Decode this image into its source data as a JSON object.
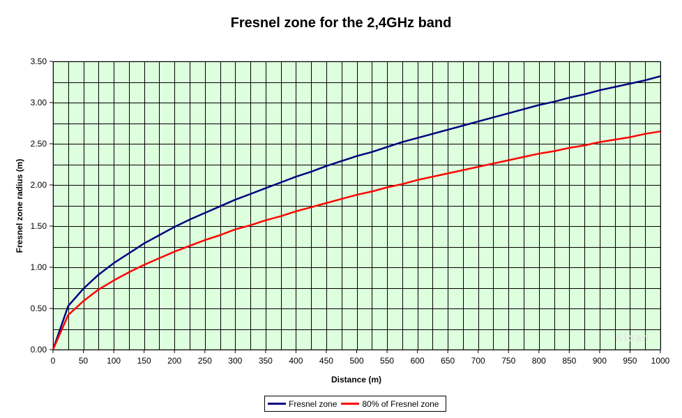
{
  "chart_data": {
    "type": "line",
    "title": "Fresnel zone for the 2,4GHz band",
    "xlabel": "Distance (m)",
    "ylabel": "Fresnel zone radius (m)",
    "xlim": [
      0,
      1000
    ],
    "ylim": [
      0,
      3.5
    ],
    "x_ticks": [
      "0",
      "50",
      "100",
      "150",
      "200",
      "250",
      "300",
      "350",
      "400",
      "450",
      "500",
      "550",
      "600",
      "650",
      "700",
      "750",
      "800",
      "850",
      "900",
      "950",
      "1000"
    ],
    "y_ticks": [
      "0.00",
      "0.50",
      "1.00",
      "1.50",
      "2.00",
      "2.50",
      "3.00",
      "3.50"
    ],
    "grid": true,
    "legend_position": "bottom",
    "x": [
      0,
      25,
      50,
      75,
      100,
      125,
      150,
      175,
      200,
      225,
      250,
      275,
      300,
      325,
      350,
      375,
      400,
      425,
      450,
      475,
      500,
      525,
      550,
      575,
      600,
      625,
      650,
      675,
      700,
      725,
      750,
      775,
      800,
      825,
      850,
      875,
      900,
      925,
      950,
      975,
      1000
    ],
    "series": [
      {
        "name": "Fresnel zone",
        "color": "#000080",
        "values": [
          0.0,
          0.53,
          0.74,
          0.91,
          1.05,
          1.17,
          1.29,
          1.39,
          1.49,
          1.58,
          1.66,
          1.74,
          1.82,
          1.89,
          1.96,
          2.03,
          2.1,
          2.16,
          2.23,
          2.29,
          2.35,
          2.4,
          2.46,
          2.52,
          2.57,
          2.62,
          2.67,
          2.72,
          2.77,
          2.82,
          2.87,
          2.92,
          2.97,
          3.01,
          3.06,
          3.1,
          3.15,
          3.19,
          3.23,
          3.27,
          3.32
        ]
      },
      {
        "name": "80% of Fresnel zone",
        "color": "#ff0000",
        "values": [
          0.0,
          0.42,
          0.59,
          0.73,
          0.84,
          0.94,
          1.03,
          1.11,
          1.19,
          1.26,
          1.33,
          1.39,
          1.46,
          1.51,
          1.57,
          1.62,
          1.68,
          1.73,
          1.78,
          1.83,
          1.88,
          1.92,
          1.97,
          2.01,
          2.06,
          2.1,
          2.14,
          2.18,
          2.22,
          2.26,
          2.3,
          2.34,
          2.38,
          2.41,
          2.45,
          2.48,
          2.52,
          2.55,
          2.58,
          2.62,
          2.65
        ]
      }
    ],
    "plot_background": "#ddffdd",
    "watermark": "Kloan"
  }
}
